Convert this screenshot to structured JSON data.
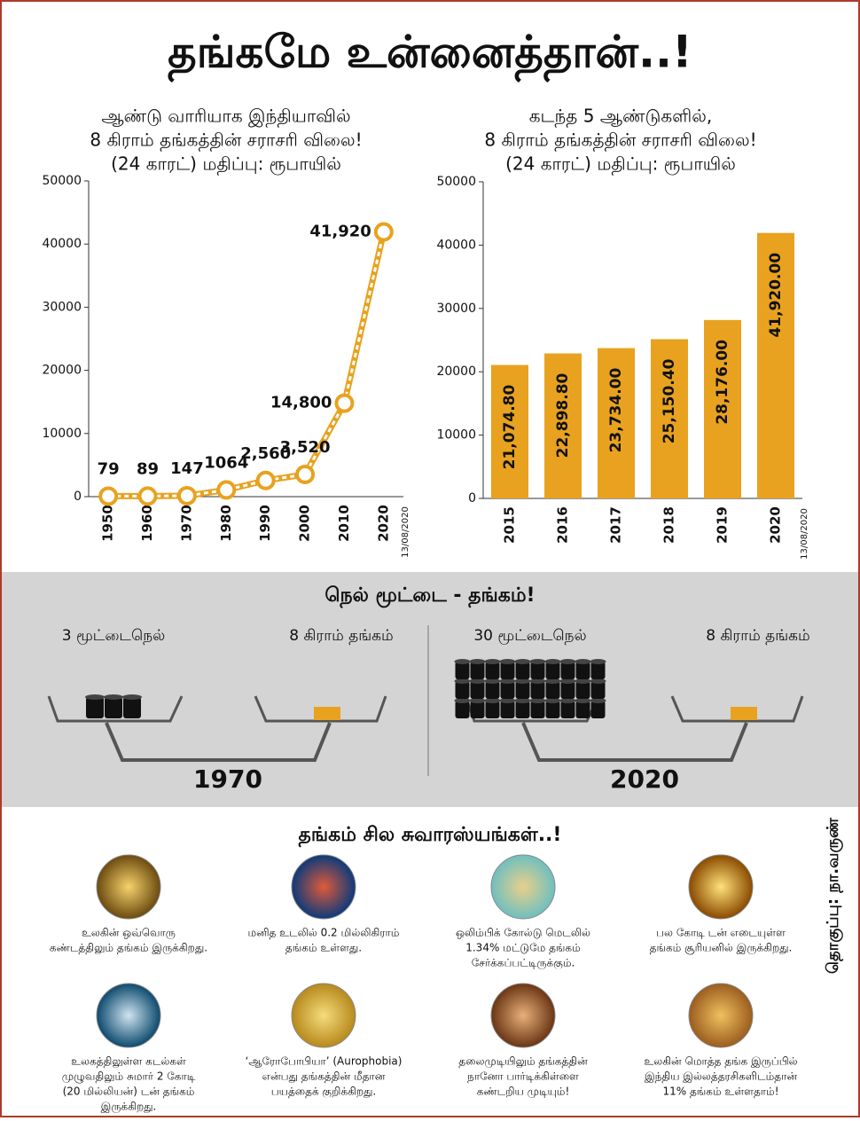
{
  "title": "தங்கமே உன்னைத்தான்..!",
  "chart_data": [
    {
      "type": "line",
      "title": [
        "ஆண்டு வாரியாக இந்தியாவில்",
        "8 கிராம் தங்கத்தின் சராசரி விலை!",
        "(24 காரட்) மதிப்பு: ரூபாயில்"
      ],
      "x": [
        1950,
        1960,
        1970,
        1980,
        1990,
        2000,
        2010,
        2020
      ],
      "values": [
        79,
        89,
        147,
        1064,
        2560,
        3520,
        14800,
        41920
      ],
      "value_labels": [
        "79",
        "89",
        "147",
        "1064",
        "2,560",
        "3,520",
        "14,800",
        "41,920"
      ],
      "xlim": [
        1945,
        2025
      ],
      "ylim": [
        0,
        50000
      ],
      "yticks": [
        0,
        10000,
        20000,
        30000,
        40000,
        50000
      ],
      "color": "#e8a21f",
      "date": "13/08/2020"
    },
    {
      "type": "bar",
      "title": [
        "கடந்த 5 ஆண்டுகளில்,",
        "8 கிராம் தங்கத்தின் சராசரி விலை!",
        "(24 காரட்) மதிப்பு: ரூபாயில்"
      ],
      "categories": [
        "2015",
        "2016",
        "2017",
        "2018",
        "2019",
        "2020"
      ],
      "values": [
        21074.8,
        22898.8,
        23734,
        25150.4,
        28176,
        41920
      ],
      "value_labels": [
        "21,074.80",
        "22,898.80",
        "23,734.00",
        "25,150.40",
        "28,176.00",
        "41,920.00"
      ],
      "ylim": [
        0,
        50000
      ],
      "yticks": [
        0,
        10000,
        20000,
        30000,
        40000,
        50000
      ],
      "color": "#e8a21f",
      "date": "13/08/2020"
    }
  ],
  "comparison": {
    "title": "நெல் மூட்டை - தங்கம்!",
    "panels": [
      {
        "year": "1970",
        "left": "3 மூட்டைநெல்",
        "right": "8 கிராம் தங்கம்",
        "bags": 3
      },
      {
        "year": "2020",
        "left": "30 மூட்டைநெல்",
        "right": "8 கிராம் தங்கம்",
        "bags": 30
      }
    ]
  },
  "facts": {
    "title": "தங்கம் சில சுவாரஸ்யங்கள்..!",
    "items": [
      [
        "உலகின் ஒவ்வொரு",
        "கண்டத்திலும் தங்கம் இருக்கிறது."
      ],
      [
        "மனித உடலில் 0.2 மில்லிகிராம்",
        "தங்கம் உள்ளது."
      ],
      [
        "ஒலிம்பிக் கோல்டு மெடலில்",
        "1.34% மட்டுமே தங்கம்",
        "சேர்க்கப்பட்டிருக்கும்."
      ],
      [
        "பல கோடி டன் எடையுள்ள",
        "தங்கம் சூரியனில் இருக்கிறது."
      ],
      [
        "உலகத்திலுள்ள கடல்கள்",
        "முழுவதிலும் சுமார் 2 கோடி",
        "(20 மில்லியன்) டன் தங்கம்",
        "இருக்கிறது."
      ],
      [
        "‘ஆரோபோபியா’ (Aurophobia)",
        "என்பது தங்கத்தின் மீதான",
        "பயத்தைக் குறிக்கிறது."
      ],
      [
        "தலைமுடியிலும் தங்கத்தின்",
        "நானோ பார்டிக்கிள்ளை",
        "கண்டறிய முடியும்!"
      ],
      [
        "உலகின் மொத்த தங்க இருப்பில்",
        "இந்திய இல்லத்தரசிகளிடம்தான்",
        "11% தங்கம் உள்ளதாம்!"
      ]
    ],
    "credit": "தொகுப்பு: நா.வருண்"
  }
}
